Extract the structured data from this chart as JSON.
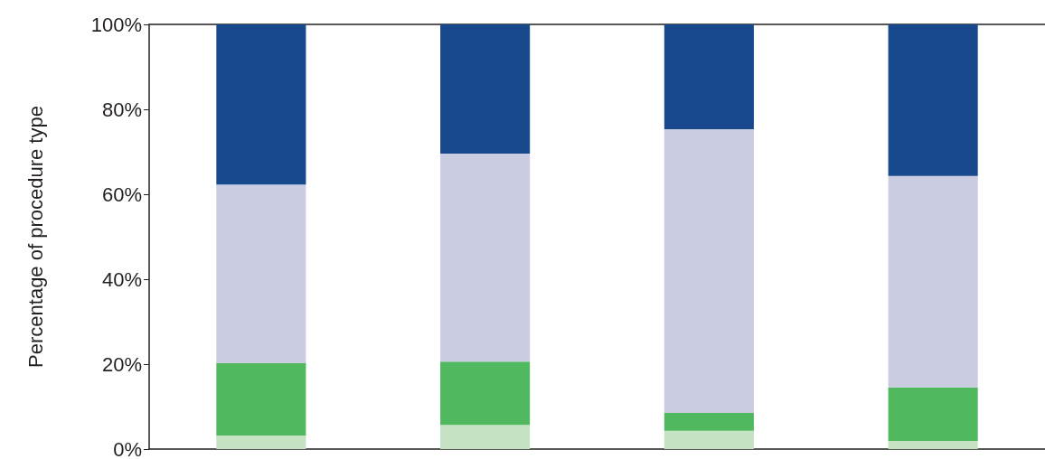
{
  "chart_data": {
    "type": "bar",
    "stacked": true,
    "ylabel": "Percentage of procedure type",
    "categories": [
      null,
      null,
      null,
      null
    ],
    "series": [
      {
        "color": "#c5e3c3",
        "values": [
          3.2,
          5.7,
          4.3,
          1.9
        ]
      },
      {
        "color": "#50b85e",
        "values": [
          17.0,
          14.9,
          4.2,
          12.6
        ]
      },
      {
        "color": "#cacce2",
        "values": [
          42.1,
          49.0,
          66.8,
          49.8
        ]
      },
      {
        "color": "#17498c",
        "values": [
          37.7,
          30.4,
          24.7,
          35.7
        ]
      }
    ],
    "ylim": [
      0,
      100
    ],
    "yticks": [
      {
        "value": 0,
        "label": "0%"
      },
      {
        "value": 20,
        "label": "20%"
      },
      {
        "value": 40,
        "label": "40%"
      },
      {
        "value": 60,
        "label": "60%"
      },
      {
        "value": 80,
        "label": "80%"
      },
      {
        "value": 100,
        "label": "100%"
      }
    ],
    "grid": false
  }
}
